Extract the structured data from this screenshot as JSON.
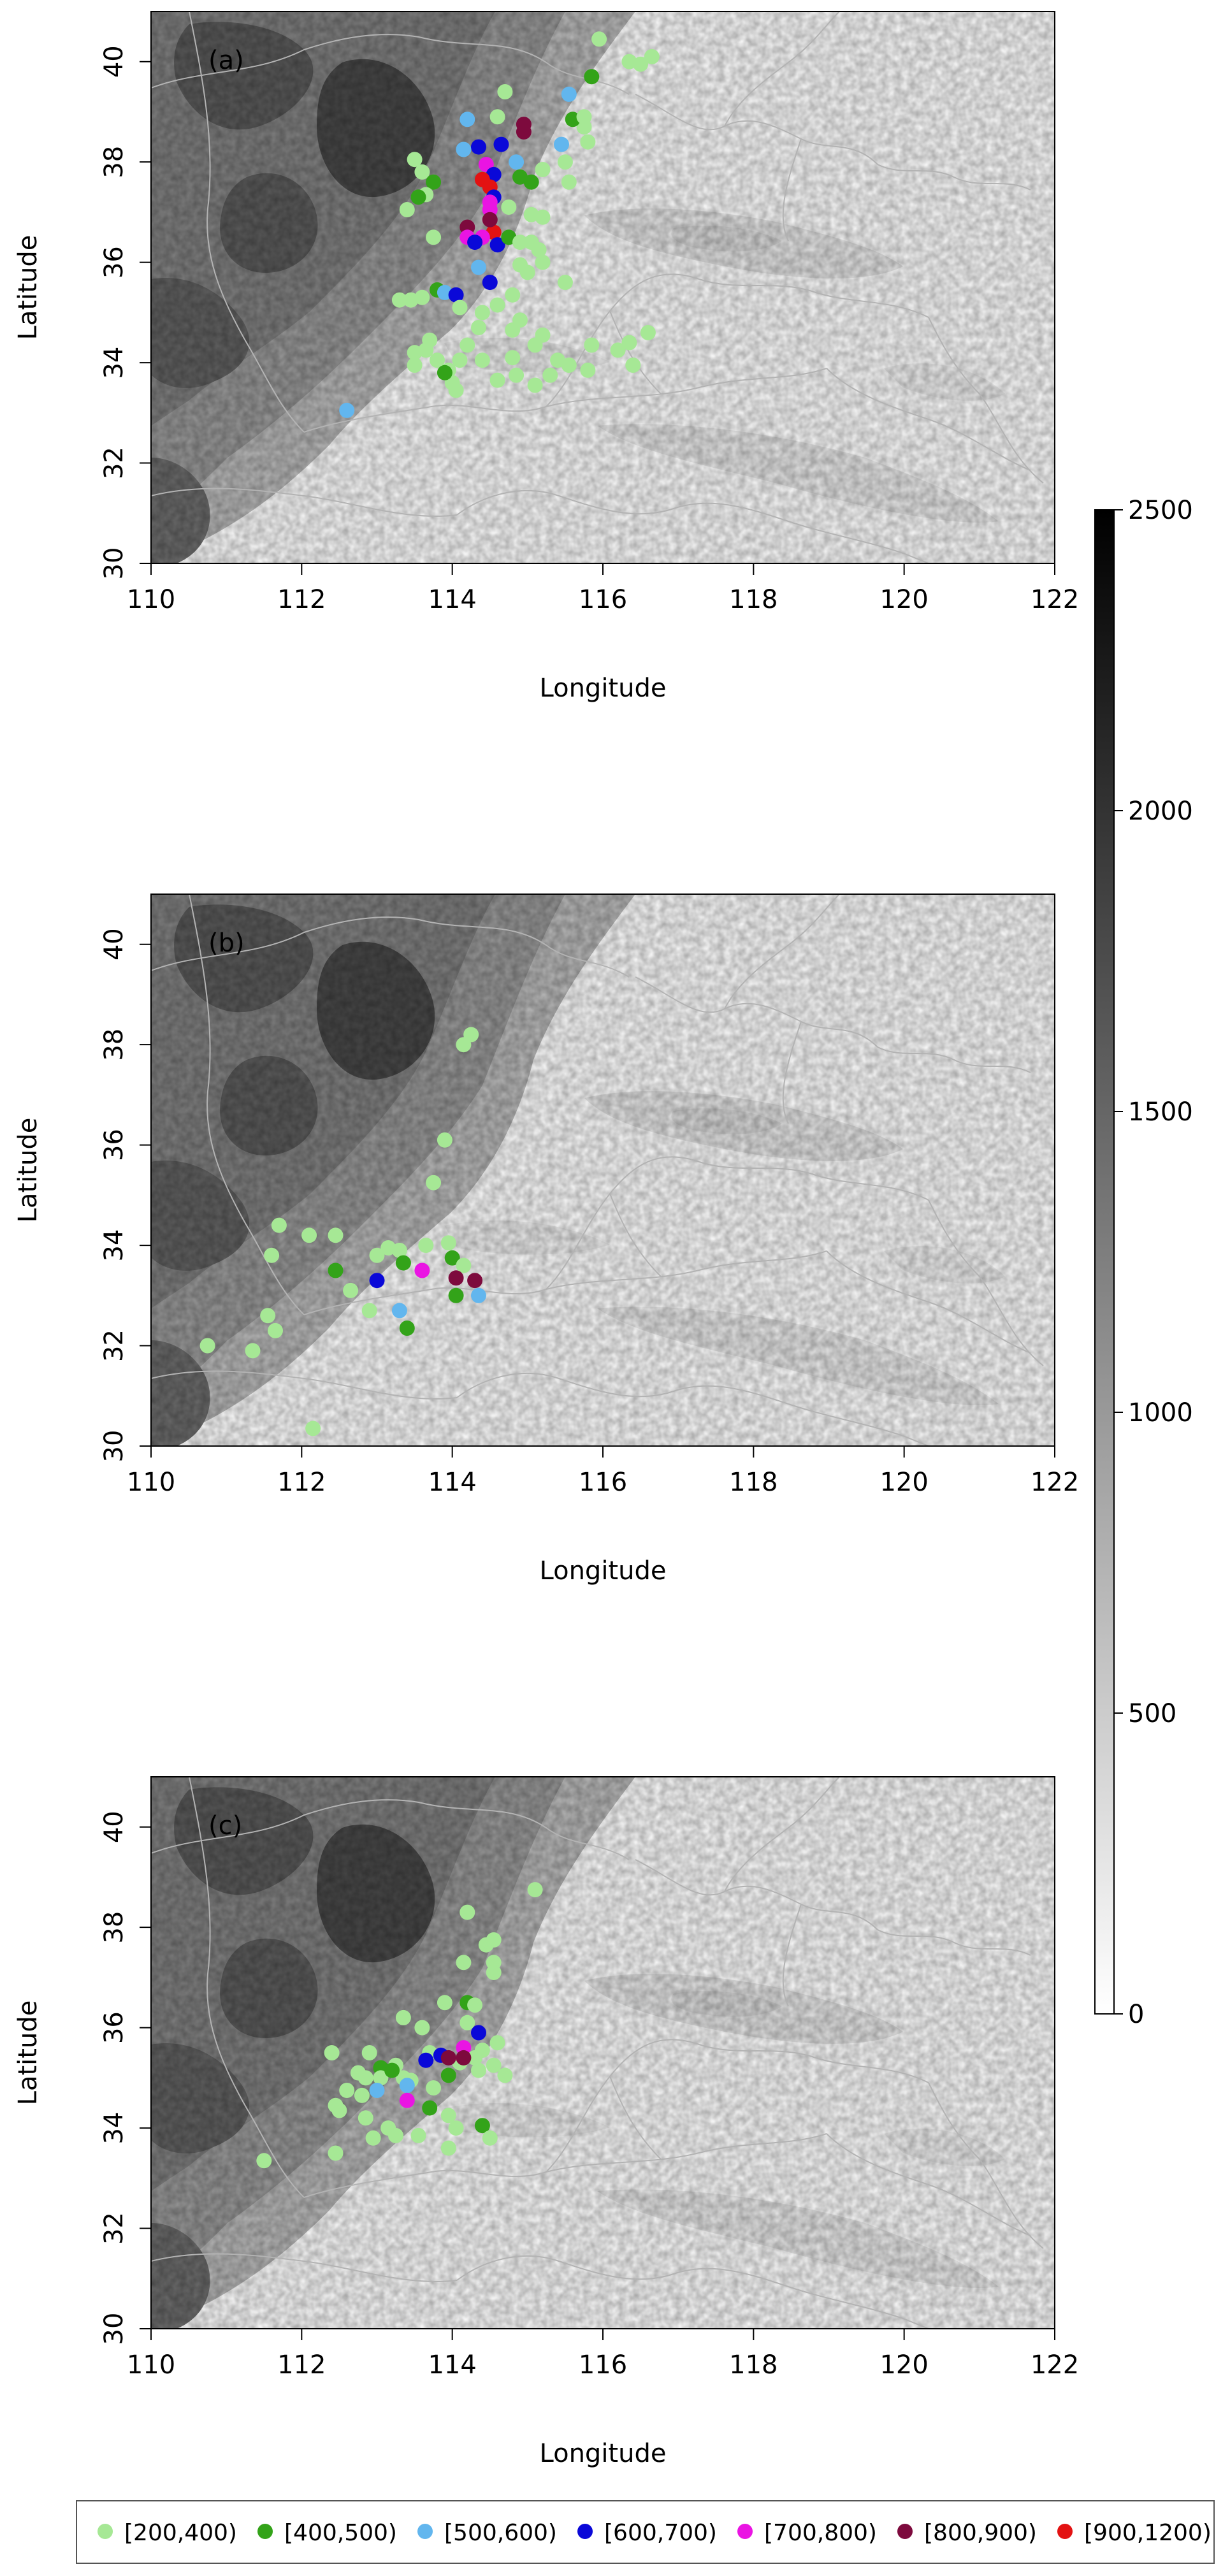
{
  "figure": {
    "x_axis": {
      "label": "Longitude",
      "range": [
        110,
        122
      ],
      "ticks": [
        "110",
        "112",
        "114",
        "116",
        "118",
        "120",
        "122"
      ]
    },
    "y_axis": {
      "label": "Latitude",
      "range": [
        30,
        41
      ],
      "ticks": [
        "30",
        "32",
        "34",
        "36",
        "38",
        "40"
      ]
    },
    "colorbar": {
      "range": [
        0,
        2500
      ],
      "ticks": [
        "0",
        "500",
        "1000",
        "1500",
        "2000",
        "2500"
      ],
      "gradient": [
        "#ffffff",
        "#000000"
      ]
    },
    "legend": {
      "items": [
        {
          "label": "[200,400)",
          "color": "#a6e895"
        },
        {
          "label": "[400,500)",
          "color": "#33a319"
        },
        {
          "label": "[500,600)",
          "color": "#62b6ee"
        },
        {
          "label": "[600,700)",
          "color": "#0a08d8"
        },
        {
          "label": "[700,800)",
          "color": "#ea14e3"
        },
        {
          "label": "[800,900)",
          "color": "#7d0a3d"
        },
        {
          "label": "[900,1200)",
          "color": "#e31212"
        }
      ]
    }
  },
  "panels": [
    {
      "tag": "(a)",
      "points": [
        [
          115.95,
          40.45,
          0
        ],
        [
          116.35,
          40.0,
          0
        ],
        [
          116.5,
          39.95,
          0
        ],
        [
          116.65,
          40.1,
          0
        ],
        [
          115.85,
          39.7,
          1
        ],
        [
          115.55,
          39.35,
          2
        ],
        [
          114.7,
          39.4,
          0
        ],
        [
          114.2,
          38.85,
          2
        ],
        [
          114.6,
          38.9,
          0
        ],
        [
          114.95,
          38.6,
          5
        ],
        [
          114.95,
          38.75,
          5
        ],
        [
          115.75,
          38.7,
          0
        ],
        [
          115.6,
          38.85,
          1
        ],
        [
          115.8,
          38.4,
          0
        ],
        [
          115.75,
          38.9,
          0
        ],
        [
          114.35,
          38.3,
          3
        ],
        [
          114.15,
          38.25,
          2
        ],
        [
          114.65,
          38.35,
          3
        ],
        [
          115.45,
          38.35,
          2
        ],
        [
          113.5,
          38.05,
          0
        ],
        [
          113.6,
          37.8,
          0
        ],
        [
          113.75,
          37.6,
          1
        ],
        [
          113.65,
          37.35,
          0
        ],
        [
          113.55,
          37.3,
          1
        ],
        [
          114.45,
          37.95,
          4
        ],
        [
          114.55,
          37.75,
          3
        ],
        [
          114.9,
          37.7,
          1
        ],
        [
          114.85,
          38.0,
          2
        ],
        [
          115.5,
          38.0,
          0
        ],
        [
          115.2,
          37.85,
          0
        ],
        [
          115.55,
          37.6,
          0
        ],
        [
          115.05,
          37.6,
          1
        ],
        [
          114.4,
          37.65,
          6
        ],
        [
          114.5,
          37.5,
          6
        ],
        [
          114.55,
          37.3,
          3
        ],
        [
          114.5,
          37.2,
          4
        ],
        [
          114.5,
          37.05,
          4
        ],
        [
          114.2,
          36.7,
          5
        ],
        [
          114.55,
          36.6,
          6
        ],
        [
          114.4,
          36.5,
          4
        ],
        [
          114.2,
          36.5,
          4
        ],
        [
          114.5,
          36.85,
          5
        ],
        [
          114.3,
          36.4,
          3
        ],
        [
          114.6,
          36.35,
          3
        ],
        [
          114.75,
          36.5,
          1
        ],
        [
          115.05,
          36.95,
          0
        ],
        [
          115.2,
          36.9,
          0
        ],
        [
          114.75,
          37.1,
          0
        ],
        [
          113.4,
          37.05,
          0
        ],
        [
          113.75,
          36.5,
          0
        ],
        [
          114.9,
          36.4,
          0
        ],
        [
          114.35,
          35.9,
          2
        ],
        [
          114.9,
          35.95,
          0
        ],
        [
          115.2,
          36.0,
          0
        ],
        [
          115.15,
          36.25,
          0
        ],
        [
          115.05,
          36.4,
          0
        ],
        [
          115.0,
          35.8,
          0
        ],
        [
          114.5,
          35.6,
          3
        ],
        [
          115.5,
          35.6,
          0
        ],
        [
          114.8,
          35.35,
          0
        ],
        [
          114.6,
          35.15,
          0
        ],
        [
          114.4,
          35.0,
          0
        ],
        [
          113.8,
          35.45,
          1
        ],
        [
          113.9,
          35.4,
          2
        ],
        [
          114.05,
          35.35,
          3
        ],
        [
          114.1,
          35.1,
          0
        ],
        [
          113.6,
          35.3,
          0
        ],
        [
          113.3,
          35.25,
          0
        ],
        [
          113.45,
          35.25,
          0
        ],
        [
          114.35,
          34.7,
          0
        ],
        [
          114.9,
          34.85,
          0
        ],
        [
          114.8,
          34.65,
          0
        ],
        [
          115.2,
          34.55,
          0
        ],
        [
          115.1,
          34.35,
          0
        ],
        [
          114.2,
          34.35,
          0
        ],
        [
          114.1,
          34.05,
          0
        ],
        [
          114.4,
          34.05,
          0
        ],
        [
          114.8,
          34.1,
          0
        ],
        [
          113.7,
          34.45,
          0
        ],
        [
          113.5,
          34.2,
          0
        ],
        [
          113.5,
          33.95,
          0
        ],
        [
          113.65,
          34.25,
          0
        ],
        [
          113.8,
          34.05,
          0
        ],
        [
          113.95,
          33.85,
          0
        ],
        [
          114.0,
          33.6,
          0
        ],
        [
          114.05,
          33.45,
          0
        ],
        [
          113.9,
          33.8,
          1
        ],
        [
          114.6,
          33.65,
          0
        ],
        [
          114.85,
          33.75,
          0
        ],
        [
          115.1,
          33.55,
          0
        ],
        [
          115.3,
          33.75,
          0
        ],
        [
          115.55,
          33.95,
          0
        ],
        [
          115.8,
          33.85,
          0
        ],
        [
          115.85,
          34.35,
          0
        ],
        [
          116.2,
          34.25,
          0
        ],
        [
          116.35,
          34.4,
          0
        ],
        [
          116.4,
          33.95,
          0
        ],
        [
          116.6,
          34.6,
          0
        ],
        [
          115.4,
          34.05,
          0
        ],
        [
          112.6,
          33.05,
          2
        ]
      ]
    },
    {
      "tag": "(b)",
      "points": [
        [
          114.25,
          38.2,
          0
        ],
        [
          114.15,
          38.0,
          0
        ],
        [
          113.9,
          36.1,
          0
        ],
        [
          113.75,
          35.25,
          0
        ],
        [
          111.7,
          34.4,
          0
        ],
        [
          112.1,
          34.2,
          0
        ],
        [
          112.45,
          34.2,
          0
        ],
        [
          111.6,
          33.8,
          0
        ],
        [
          112.45,
          33.5,
          1
        ],
        [
          112.65,
          33.1,
          0
        ],
        [
          113.0,
          33.8,
          0
        ],
        [
          113.3,
          33.9,
          0
        ],
        [
          113.15,
          33.95,
          0
        ],
        [
          113.65,
          34.0,
          0
        ],
        [
          113.35,
          33.65,
          1
        ],
        [
          113.95,
          34.05,
          0
        ],
        [
          114.0,
          33.75,
          1
        ],
        [
          114.15,
          33.6,
          0
        ],
        [
          113.0,
          33.3,
          3
        ],
        [
          113.6,
          33.5,
          4
        ],
        [
          114.05,
          33.35,
          5
        ],
        [
          114.3,
          33.3,
          5
        ],
        [
          114.05,
          33.0,
          1
        ],
        [
          114.35,
          33.0,
          2
        ],
        [
          113.4,
          32.35,
          1
        ],
        [
          113.3,
          32.7,
          2
        ],
        [
          112.9,
          32.7,
          0
        ],
        [
          111.55,
          32.6,
          0
        ],
        [
          111.65,
          32.3,
          0
        ],
        [
          110.75,
          32.0,
          0
        ],
        [
          111.35,
          31.9,
          0
        ],
        [
          112.15,
          30.35,
          0
        ]
      ]
    },
    {
      "tag": "(c)",
      "points": [
        [
          115.1,
          38.75,
          0
        ],
        [
          114.2,
          38.3,
          0
        ],
        [
          114.45,
          37.65,
          0
        ],
        [
          114.55,
          37.75,
          0
        ],
        [
          114.15,
          37.3,
          0
        ],
        [
          114.55,
          37.3,
          0
        ],
        [
          114.55,
          37.1,
          0
        ],
        [
          113.9,
          36.5,
          0
        ],
        [
          114.2,
          36.5,
          1
        ],
        [
          114.3,
          36.45,
          0
        ],
        [
          114.2,
          36.1,
          0
        ],
        [
          113.35,
          36.2,
          0
        ],
        [
          113.6,
          36.0,
          0
        ],
        [
          114.35,
          35.9,
          3
        ],
        [
          114.6,
          35.7,
          0
        ],
        [
          114.4,
          35.55,
          0
        ],
        [
          113.7,
          35.5,
          0
        ],
        [
          114.15,
          35.6,
          4
        ],
        [
          113.65,
          35.35,
          3
        ],
        [
          113.85,
          35.45,
          3
        ],
        [
          114.1,
          35.3,
          0
        ],
        [
          114.3,
          35.4,
          0
        ],
        [
          114.55,
          35.25,
          0
        ],
        [
          114.7,
          35.05,
          0
        ],
        [
          113.05,
          35.2,
          1
        ],
        [
          113.25,
          35.25,
          0
        ],
        [
          113.05,
          35.0,
          0
        ],
        [
          113.35,
          35.0,
          0
        ],
        [
          112.4,
          35.5,
          0
        ],
        [
          112.75,
          35.1,
          0
        ],
        [
          112.9,
          35.5,
          0
        ],
        [
          112.85,
          35.0,
          0
        ],
        [
          113.2,
          35.15,
          1
        ],
        [
          113.45,
          34.95,
          0
        ],
        [
          113.95,
          35.05,
          1
        ],
        [
          113.95,
          35.4,
          5
        ],
        [
          114.15,
          35.4,
          5
        ],
        [
          114.35,
          35.15,
          0
        ],
        [
          113.4,
          34.85,
          2
        ],
        [
          113.75,
          34.8,
          0
        ],
        [
          113.0,
          34.75,
          2
        ],
        [
          112.8,
          34.65,
          0
        ],
        [
          112.6,
          34.75,
          0
        ],
        [
          112.45,
          34.45,
          0
        ],
        [
          112.5,
          34.35,
          0
        ],
        [
          112.85,
          34.2,
          0
        ],
        [
          113.15,
          34.0,
          0
        ],
        [
          113.25,
          33.85,
          0
        ],
        [
          113.55,
          33.85,
          0
        ],
        [
          113.7,
          34.4,
          1
        ],
        [
          113.95,
          34.25,
          0
        ],
        [
          114.05,
          34.0,
          0
        ],
        [
          114.4,
          34.05,
          1
        ],
        [
          114.5,
          33.8,
          0
        ],
        [
          113.4,
          34.55,
          4
        ],
        [
          113.95,
          33.6,
          0
        ],
        [
          112.45,
          33.5,
          0
        ],
        [
          112.95,
          33.8,
          0
        ],
        [
          111.5,
          33.35,
          0
        ]
      ]
    }
  ]
}
